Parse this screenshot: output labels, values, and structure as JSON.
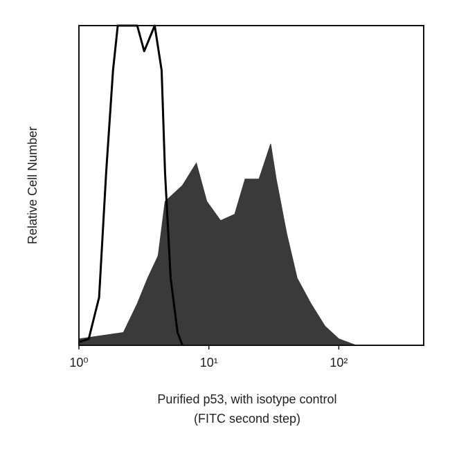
{
  "chart_data": {
    "type": "area",
    "ylabel": "Relative Cell Number",
    "xlabel": [
      "Purified p53, with isotype control",
      "(FITC second step)"
    ],
    "xscale": "log",
    "xlim": [
      1,
      450
    ],
    "ylim": [
      0,
      100
    ],
    "xticks": [
      {
        "value": 1,
        "label": "10⁰"
      },
      {
        "value": 10,
        "label": "10¹"
      },
      {
        "value": 100,
        "label": "10²"
      }
    ],
    "series": [
      {
        "color": "#3a3a3a",
        "fill": true,
        "x": [
          1.0,
          2.2,
          2.81,
          3.38,
          4.07,
          4.6,
          5.21,
          6.26,
          8.01,
          9.64,
          12.3,
          15.8,
          19.0,
          24.3,
          29.9,
          33.0,
          39.7,
          47.8,
          61.1,
          78.2,
          100,
          136
        ],
        "values": [
          2,
          4,
          13,
          21,
          28,
          45,
          47,
          50,
          57,
          45,
          39,
          41,
          52,
          52,
          63,
          52,
          35,
          21,
          13,
          6,
          2,
          0
        ]
      },
      {
        "color": "#000000",
        "fill": false,
        "x": [
          1.0,
          1.19,
          1.43,
          1.62,
          1.83,
          1.99,
          2.81,
          3.18,
          3.83,
          4.33,
          4.6,
          5.08,
          5.74,
          6.26
        ],
        "values": [
          1,
          2,
          15,
          54,
          86,
          100,
          100,
          92,
          100,
          86,
          54,
          21,
          4,
          0
        ]
      }
    ]
  }
}
